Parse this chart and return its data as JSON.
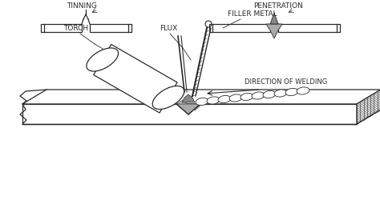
{
  "bg_color": "#ffffff",
  "line_color": "#2a2a2a",
  "labels": {
    "torch": "TORCH",
    "flux": "FLUX",
    "filler_metal": "FILLER METAL",
    "direction": "DIRECTION OF WELDING",
    "tinning": "TINNING",
    "penetration": "PENETRATION"
  },
  "font_size": 6.5,
  "fig_width": 4.74,
  "fig_height": 2.6,
  "dpi": 100
}
